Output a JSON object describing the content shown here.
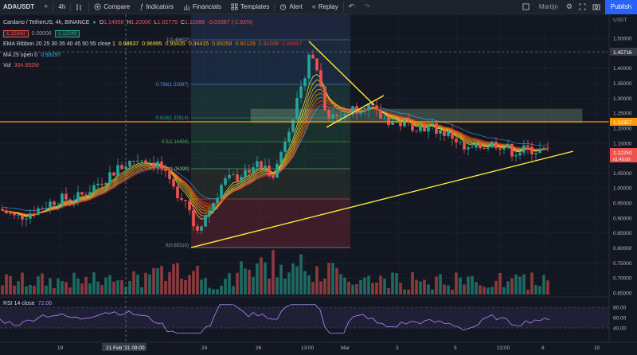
{
  "toolbar": {
    "symbol": "ADAUSDT",
    "add": "+",
    "interval": "4h",
    "compare": "Compare",
    "indicators": "Indicators",
    "financials": "Financials",
    "templates": "Templates",
    "alert": "Alert",
    "replay": "Replay",
    "user": "Martijn",
    "publish": "Publish"
  },
  "legend": {
    "title": "Cardano / TetherUS, 4h, BINANCE",
    "o_label": "O",
    "o": "1.14958",
    "h_label": "H",
    "h": "1.20000",
    "l_label": "L",
    "l": "1.02775",
    "c_label": "C",
    "c": "1.11568",
    "change": "-0.03367 (-2.93%)",
    "bid": "1.12243",
    "spread": "0.00006",
    "ask": "1.12249",
    "ema_label": "EMA Ribbon 20 25 30 35 40 45 50 55 close 1",
    "ema_values": [
      "0.98637",
      "0.96995",
      "0.95635",
      "0.94415",
      "0.93259",
      "0.92129",
      "0.91006",
      "0.89887"
    ],
    "ma_label": "MA 25 open 0",
    "ma_value": "0.93297",
    "vol_label": "Vol",
    "vol_value": "304.892M",
    "rsi_label": "RSI 14 close",
    "rsi_value": "72.06"
  },
  "price_axis": {
    "ticks": [
      "1.50000",
      "1.45000",
      "1.40000",
      "1.35000",
      "1.30000",
      "1.25000",
      "1.20000",
      "1.15000",
      "1.10000",
      "1.05000",
      "1.00000",
      "0.95000",
      "0.90000",
      "0.85000",
      "0.80000",
      "0.75000",
      "0.70000",
      "0.65000"
    ],
    "rsi_ticks": [
      "80.00",
      "60.00",
      "40.00"
    ],
    "crosshair_price": "1.45716",
    "orange_level": "1.22357",
    "last_price": "1.12250",
    "countdown": "01:45:00",
    "currency": "USDT"
  },
  "time_axis": {
    "labels": [
      "19",
      "21 Feb '21 09:00",
      "24",
      "26",
      "13:00",
      "Mar",
      "3",
      "5",
      "13:00",
      "8",
      "10"
    ]
  },
  "fib": {
    "levels": [
      "1(1.48602)",
      "0.786(1.33987)",
      "0.618(1.22514)",
      "0.5(1.14456)",
      "0.382(1.06399)",
      "0(0.80310)"
    ]
  },
  "colors": {
    "background": "#131722",
    "up": "#26a69a",
    "down": "#ef5350",
    "orange_line": "#ff9800",
    "trendline": "#ffeb3b",
    "rsi": "#7e57c2",
    "accent": "#2962ff"
  },
  "icons": {
    "interval": "bar-chart-icon",
    "compare": "plus-circle-icon",
    "indicators": "function-icon",
    "financials": "chart-icon",
    "templates": "grid-icon",
    "alert": "alarm-clock-icon",
    "replay": "rewind-icon",
    "undo": "undo-icon",
    "redo": "redo-icon",
    "layout": "layout-icon",
    "settings": "gear-icon",
    "fullscreen": "fullscreen-icon",
    "snapshot": "camera-icon"
  }
}
